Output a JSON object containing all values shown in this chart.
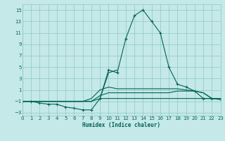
{
  "xlabel": "Humidex (Indice chaleur)",
  "background_color": "#c5e8e8",
  "grid_color": "#8ec8c8",
  "line_color": "#006655",
  "xlim": [
    0,
    23
  ],
  "ylim": [
    -3.5,
    16
  ],
  "xticks": [
    0,
    1,
    2,
    3,
    4,
    5,
    6,
    7,
    8,
    9,
    10,
    11,
    12,
    13,
    14,
    15,
    16,
    17,
    18,
    19,
    20,
    21,
    22,
    23
  ],
  "yticks": [
    -3,
    -1,
    1,
    3,
    5,
    7,
    9,
    11,
    13,
    15
  ],
  "series": [
    {
      "x": [
        0,
        1,
        2,
        3,
        4,
        5,
        6,
        7,
        8,
        9,
        10,
        11,
        12,
        13,
        14,
        15,
        16,
        17,
        18,
        19,
        20,
        21,
        22,
        23
      ],
      "y": [
        -1,
        -1,
        -1,
        -1,
        -1,
        -1,
        -1,
        -1,
        -1,
        -0.5,
        -0.5,
        -0.5,
        -0.5,
        -0.5,
        -0.5,
        -0.5,
        -0.5,
        -0.5,
        -0.5,
        -0.5,
        -0.5,
        -0.5,
        -0.5,
        -0.5
      ],
      "has_marker": false
    },
    {
      "x": [
        0,
        1,
        2,
        3,
        4,
        5,
        6,
        7,
        8,
        9,
        10,
        11,
        12,
        13,
        14,
        15,
        16,
        17,
        18,
        19,
        20,
        21,
        22,
        23
      ],
      "y": [
        -1,
        -1,
        -1,
        -1,
        -1,
        -1,
        -1,
        -1,
        -1,
        0,
        0.5,
        0.5,
        0.5,
        0.5,
        0.5,
        0.5,
        0.5,
        0.5,
        0.8,
        0.8,
        0.8,
        0.5,
        -0.5,
        -0.5
      ],
      "has_marker": false
    },
    {
      "x": [
        0,
        1,
        2,
        3,
        4,
        5,
        6,
        7,
        8,
        9,
        10,
        11,
        12,
        13,
        14,
        15,
        16,
        17,
        18,
        19,
        20,
        21,
        22,
        23
      ],
      "y": [
        -1,
        -1,
        -1,
        -1,
        -1,
        -1,
        -1,
        -1,
        -0.5,
        1,
        1.5,
        1.2,
        1.2,
        1.2,
        1.2,
        1.2,
        1.2,
        1.2,
        1.2,
        1.0,
        0.8,
        0.5,
        -0.5,
        -0.5
      ],
      "has_marker": false
    },
    {
      "x": [
        9,
        10,
        11
      ],
      "y": [
        -0.5,
        4,
        4.5
      ],
      "has_marker": false
    },
    {
      "x": [
        0,
        1,
        2,
        3,
        4,
        5,
        6,
        7,
        8,
        9,
        10,
        11,
        12,
        13,
        14,
        15,
        16,
        17,
        18,
        19,
        20,
        21,
        22,
        23
      ],
      "y": [
        -1,
        -1,
        -1.3,
        -1.5,
        -1.5,
        -2,
        -2.2,
        -2.5,
        -2.5,
        -0.5,
        4.5,
        4,
        10,
        14,
        15,
        13,
        11,
        5,
        2,
        1.5,
        0.8,
        -0.5,
        -0.5,
        -0.7
      ],
      "has_marker": true
    }
  ]
}
